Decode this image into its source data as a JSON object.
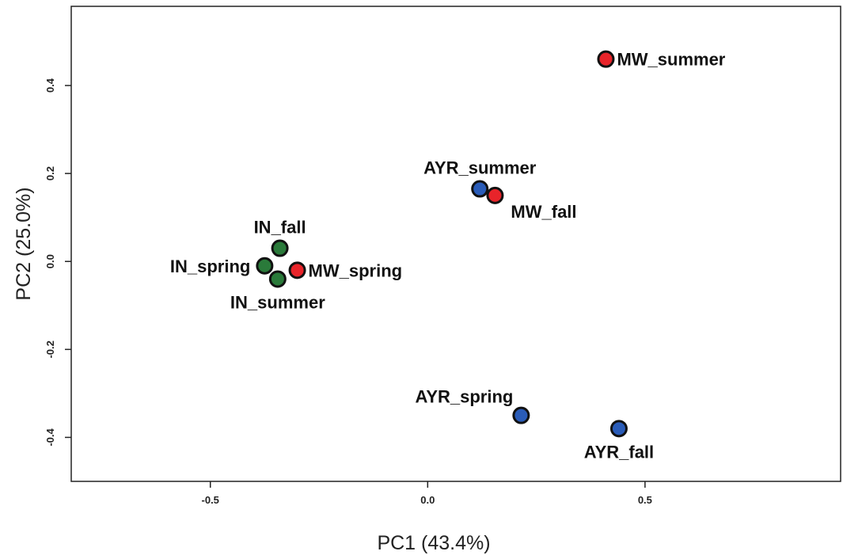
{
  "chart_data": {
    "type": "scatter",
    "xlabel": "PC1 (43.4%)",
    "ylabel": "PC2 (25.0%)",
    "xlim": [
      -0.82,
      0.95
    ],
    "ylim": [
      -0.5,
      0.58
    ],
    "x_ticks": [
      {
        "value": -0.5,
        "label": "-0.5"
      },
      {
        "value": 0.0,
        "label": "0.0"
      },
      {
        "value": 0.5,
        "label": "0.5"
      }
    ],
    "y_ticks": [
      {
        "value": -0.4,
        "label": "-0.4"
      },
      {
        "value": -0.2,
        "label": "-0.2"
      },
      {
        "value": 0.0,
        "label": "0.0"
      },
      {
        "value": 0.2,
        "label": "0.2"
      },
      {
        "value": 0.4,
        "label": "0.4"
      }
    ],
    "grid": false,
    "groups": [
      {
        "name": "MW",
        "color": "#e8242a"
      },
      {
        "name": "AYR",
        "color": "#2a5cb8"
      },
      {
        "name": "IN",
        "color": "#2a7a3a"
      }
    ],
    "points": [
      {
        "label": "MW_summer",
        "group": "MW",
        "x": 0.41,
        "y": 0.46,
        "label_pos": "right"
      },
      {
        "label": "AYR_summer",
        "group": "AYR",
        "x": 0.12,
        "y": 0.165,
        "label_pos": "above"
      },
      {
        "label": "MW_fall",
        "group": "MW",
        "x": 0.155,
        "y": 0.15,
        "label_pos": "below-right"
      },
      {
        "label": "IN_fall",
        "group": "IN",
        "x": -0.34,
        "y": 0.03,
        "label_pos": "above"
      },
      {
        "label": "IN_spring",
        "group": "IN",
        "x": -0.375,
        "y": -0.01,
        "label_pos": "left"
      },
      {
        "label": "MW_spring",
        "group": "MW",
        "x": -0.3,
        "y": -0.02,
        "label_pos": "right"
      },
      {
        "label": "IN_summer",
        "group": "IN",
        "x": -0.345,
        "y": -0.04,
        "label_pos": "below"
      },
      {
        "label": "AYR_spring",
        "group": "AYR",
        "x": 0.215,
        "y": -0.35,
        "label_pos": "above-left"
      },
      {
        "label": "AYR_fall",
        "group": "AYR",
        "x": 0.44,
        "y": -0.38,
        "label_pos": "below"
      }
    ]
  }
}
